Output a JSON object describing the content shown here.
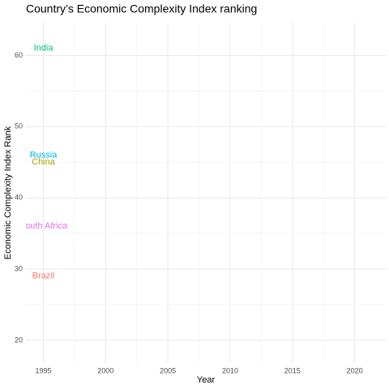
{
  "chart_data": {
    "type": "text",
    "title": "Country’s Economic Complexity Index ranking",
    "x_label": "Year",
    "y_label": "Economic Complexity Index Rank",
    "xlim": [
      1993.6,
      2022.5
    ],
    "ylim": [
      16.8,
      64.6
    ],
    "xticks": [
      1995,
      2000,
      2005,
      2010,
      2015,
      2020
    ],
    "yticks": [
      20,
      30,
      40,
      50,
      60
    ],
    "grid": true,
    "series": [
      {
        "name": "Brazil",
        "color": "#F8766D",
        "x": [
          1995
        ],
        "values": [
          29
        ]
      },
      {
        "name": "China",
        "color": "#A3A500",
        "x": [
          1995
        ],
        "values": [
          45
        ]
      },
      {
        "name": "India",
        "color": "#00BF7D",
        "x": [
          1995
        ],
        "values": [
          61
        ]
      },
      {
        "name": "Russia",
        "color": "#00B0F6",
        "x": [
          1995
        ],
        "values": [
          46
        ]
      },
      {
        "name": "South Africa",
        "color": "#E76BF3",
        "x": [
          1995
        ],
        "values": [
          36
        ]
      }
    ]
  }
}
